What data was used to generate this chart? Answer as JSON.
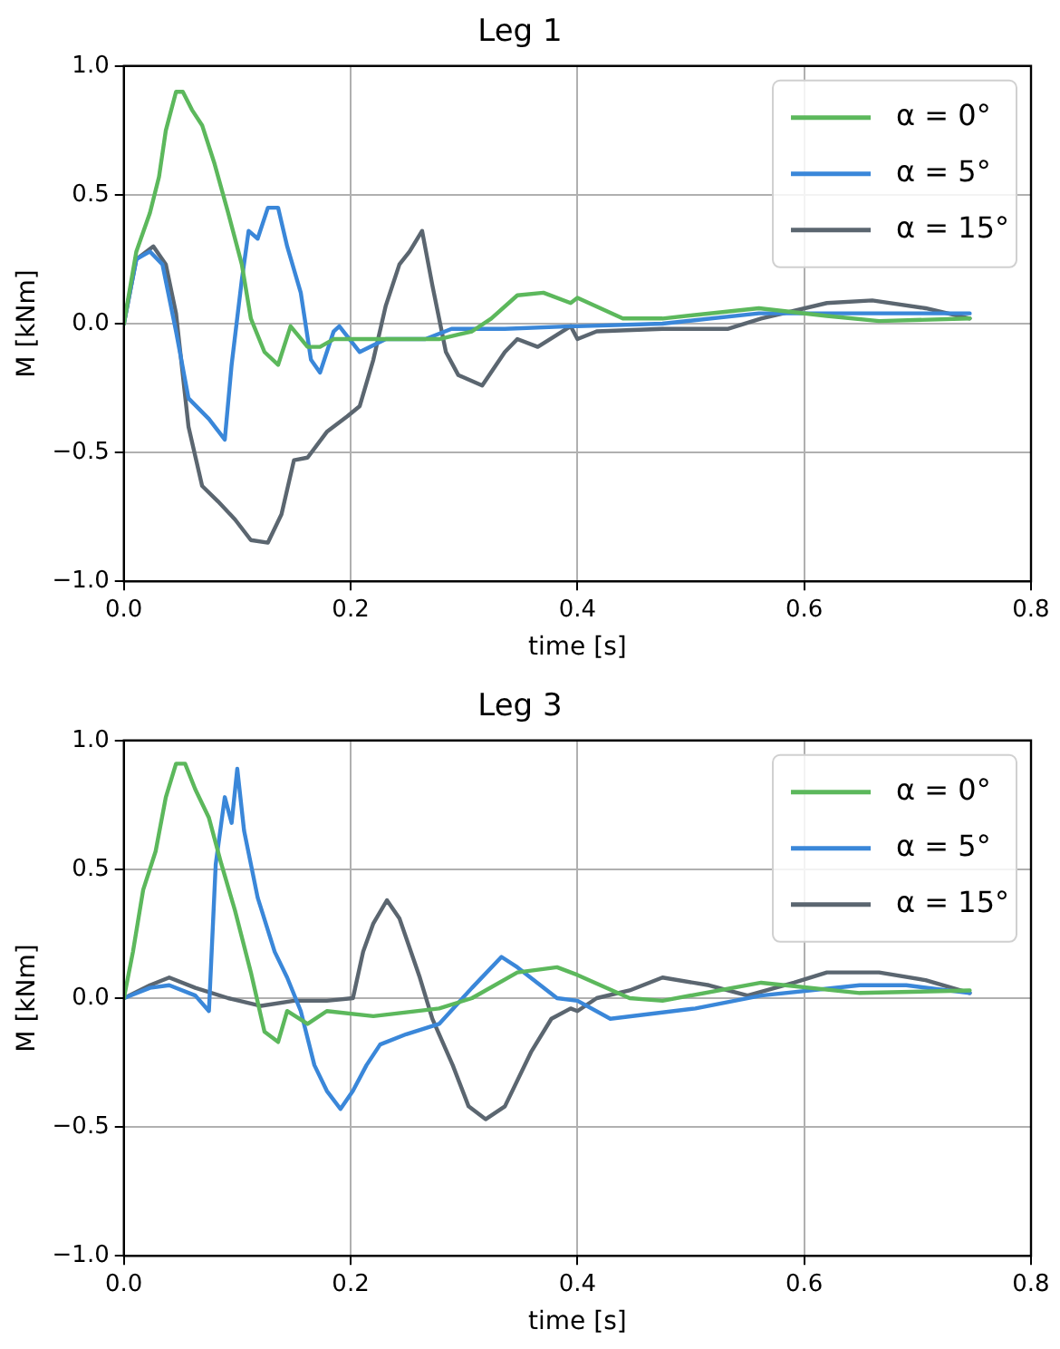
{
  "chart_data": [
    {
      "type": "line",
      "title": "Leg 1",
      "xlabel": "time [s]",
      "ylabel": "M [kNm]",
      "xlim": [
        0,
        0.8
      ],
      "ylim": [
        -1,
        1
      ],
      "xticks": [
        {
          "value": 0,
          "label": "0.0"
        },
        {
          "value": 0.2,
          "label": "0.2"
        },
        {
          "value": 0.4,
          "label": "0.4"
        },
        {
          "value": 0.6,
          "label": "0.6"
        },
        {
          "value": 0.8,
          "label": "0.8"
        }
      ],
      "yticks": [
        {
          "value": -1,
          "label": "−1.0"
        },
        {
          "value": -0.5,
          "label": "−0.5"
        },
        {
          "value": 0,
          "label": "0.0"
        },
        {
          "value": 0.5,
          "label": "0.5"
        },
        {
          "value": 1,
          "label": "1.0"
        }
      ],
      "grid": true,
      "legend": "top right",
      "marker": "none",
      "line_style": "solid",
      "series": [
        {
          "name": "α = 0°",
          "color": "#5cb85c",
          "x": [
            0,
            0.011,
            0.023,
            0.031,
            0.037,
            0.046,
            0.052,
            0.06,
            0.069,
            0.08,
            0.092,
            0.104,
            0.112,
            0.124,
            0.136,
            0.147,
            0.162,
            0.173,
            0.185,
            0.22,
            0.278,
            0.307,
            0.324,
            0.347,
            0.37,
            0.394,
            0.4,
            0.44,
            0.475,
            0.56,
            0.62,
            0.666,
            0.746
          ],
          "values": [
            0,
            0.28,
            0.43,
            0.57,
            0.75,
            0.9,
            0.9,
            0.83,
            0.77,
            0.62,
            0.43,
            0.23,
            0.02,
            -0.11,
            -0.16,
            -0.01,
            -0.09,
            -0.09,
            -0.06,
            -0.06,
            -0.06,
            -0.03,
            0.02,
            0.11,
            0.12,
            0.08,
            0.1,
            0.02,
            0.02,
            0.06,
            0.03,
            0.01,
            0.02
          ]
        },
        {
          "name": "α = 5°",
          "color": "#3a87d9",
          "x": [
            0,
            0.011,
            0.023,
            0.034,
            0.046,
            0.057,
            0.075,
            0.089,
            0.095,
            0.104,
            0.11,
            0.118,
            0.127,
            0.136,
            0.144,
            0.156,
            0.165,
            0.173,
            0.185,
            0.19,
            0.208,
            0.231,
            0.266,
            0.289,
            0.336,
            0.394,
            0.4,
            0.475,
            0.56,
            0.649,
            0.746
          ],
          "values": [
            0,
            0.25,
            0.28,
            0.23,
            -0.03,
            -0.29,
            -0.37,
            -0.45,
            -0.16,
            0.17,
            0.36,
            0.33,
            0.45,
            0.45,
            0.3,
            0.12,
            -0.14,
            -0.19,
            -0.03,
            -0.01,
            -0.11,
            -0.06,
            -0.06,
            -0.02,
            -0.02,
            -0.01,
            -0.01,
            0,
            0.04,
            0.04,
            0.04
          ]
        },
        {
          "name": "α = 15°",
          "color": "#5b6670",
          "x": [
            0,
            0.011,
            0.026,
            0.037,
            0.046,
            0.057,
            0.069,
            0.083,
            0.098,
            0.112,
            0.127,
            0.139,
            0.15,
            0.162,
            0.179,
            0.197,
            0.208,
            0.22,
            0.231,
            0.243,
            0.252,
            0.263,
            0.272,
            0.284,
            0.295,
            0.316,
            0.336,
            0.347,
            0.365,
            0.394,
            0.4,
            0.417,
            0.475,
            0.533,
            0.562,
            0.62,
            0.66,
            0.707,
            0.746
          ],
          "values": [
            0,
            0.25,
            0.3,
            0.23,
            0.04,
            -0.4,
            -0.63,
            -0.69,
            -0.76,
            -0.84,
            -0.85,
            -0.74,
            -0.53,
            -0.52,
            -0.42,
            -0.36,
            -0.32,
            -0.14,
            0.07,
            0.23,
            0.28,
            0.36,
            0.15,
            -0.11,
            -0.2,
            -0.24,
            -0.11,
            -0.06,
            -0.09,
            -0.01,
            -0.06,
            -0.03,
            -0.02,
            -0.02,
            0.02,
            0.08,
            0.09,
            0.06,
            0.02
          ]
        }
      ]
    },
    {
      "type": "line",
      "title": "Leg 3",
      "xlabel": "time [s]",
      "ylabel": "M [kNm]",
      "xlim": [
        0,
        0.8
      ],
      "ylim": [
        -1,
        1
      ],
      "xticks": [
        {
          "value": 0,
          "label": "0.0"
        },
        {
          "value": 0.2,
          "label": "0.2"
        },
        {
          "value": 0.4,
          "label": "0.4"
        },
        {
          "value": 0.6,
          "label": "0.6"
        },
        {
          "value": 0.8,
          "label": "0.8"
        }
      ],
      "yticks": [
        {
          "value": -1,
          "label": "−1.0"
        },
        {
          "value": -0.5,
          "label": "−0.5"
        },
        {
          "value": 0,
          "label": "0.0"
        },
        {
          "value": 0.5,
          "label": "0.5"
        },
        {
          "value": 1,
          "label": "1.0"
        }
      ],
      "grid": true,
      "legend": "top right",
      "marker": "none",
      "line_style": "solid",
      "series": [
        {
          "name": "α = 0°",
          "color": "#5cb85c",
          "x": [
            0,
            0.008,
            0.017,
            0.028,
            0.037,
            0.046,
            0.054,
            0.063,
            0.075,
            0.086,
            0.098,
            0.112,
            0.124,
            0.136,
            0.144,
            0.162,
            0.179,
            0.22,
            0.278,
            0.307,
            0.347,
            0.382,
            0.4,
            0.446,
            0.475,
            0.562,
            0.649,
            0.746
          ],
          "values": [
            0,
            0.18,
            0.42,
            0.57,
            0.78,
            0.91,
            0.91,
            0.81,
            0.7,
            0.52,
            0.34,
            0.1,
            -0.13,
            -0.17,
            -0.05,
            -0.1,
            -0.05,
            -0.07,
            -0.04,
            0,
            0.1,
            0.12,
            0.09,
            0,
            -0.01,
            0.06,
            0.02,
            0.03
          ]
        },
        {
          "name": "α = 5°",
          "color": "#3a87d9",
          "x": [
            0,
            0.023,
            0.04,
            0.063,
            0.075,
            0.081,
            0.089,
            0.095,
            0.1,
            0.106,
            0.118,
            0.133,
            0.144,
            0.156,
            0.168,
            0.179,
            0.191,
            0.202,
            0.214,
            0.226,
            0.249,
            0.278,
            0.307,
            0.333,
            0.347,
            0.382,
            0.4,
            0.429,
            0.504,
            0.562,
            0.649,
            0.69,
            0.746
          ],
          "values": [
            0,
            0.04,
            0.05,
            0.01,
            -0.05,
            0.52,
            0.78,
            0.68,
            0.89,
            0.65,
            0.39,
            0.18,
            0.08,
            -0.05,
            -0.26,
            -0.36,
            -0.43,
            -0.36,
            -0.26,
            -0.18,
            -0.14,
            -0.1,
            0.04,
            0.16,
            0.12,
            0,
            -0.01,
            -0.08,
            -0.04,
            0.01,
            0.05,
            0.05,
            0.02
          ]
        },
        {
          "name": "α = 15°",
          "color": "#5b6670",
          "x": [
            0,
            0.023,
            0.04,
            0.063,
            0.092,
            0.121,
            0.15,
            0.179,
            0.202,
            0.211,
            0.22,
            0.232,
            0.243,
            0.261,
            0.272,
            0.29,
            0.304,
            0.319,
            0.336,
            0.359,
            0.377,
            0.394,
            0.4,
            0.417,
            0.446,
            0.475,
            0.516,
            0.55,
            0.591,
            0.62,
            0.666,
            0.707,
            0.746
          ],
          "values": [
            0,
            0.05,
            0.08,
            0.04,
            0,
            -0.03,
            -0.01,
            -0.01,
            0,
            0.18,
            0.29,
            0.38,
            0.31,
            0.08,
            -0.08,
            -0.26,
            -0.42,
            -0.47,
            -0.42,
            -0.21,
            -0.08,
            -0.04,
            -0.05,
            0,
            0.03,
            0.08,
            0.05,
            0.01,
            0.06,
            0.1,
            0.1,
            0.07,
            0.02
          ]
        }
      ]
    }
  ]
}
